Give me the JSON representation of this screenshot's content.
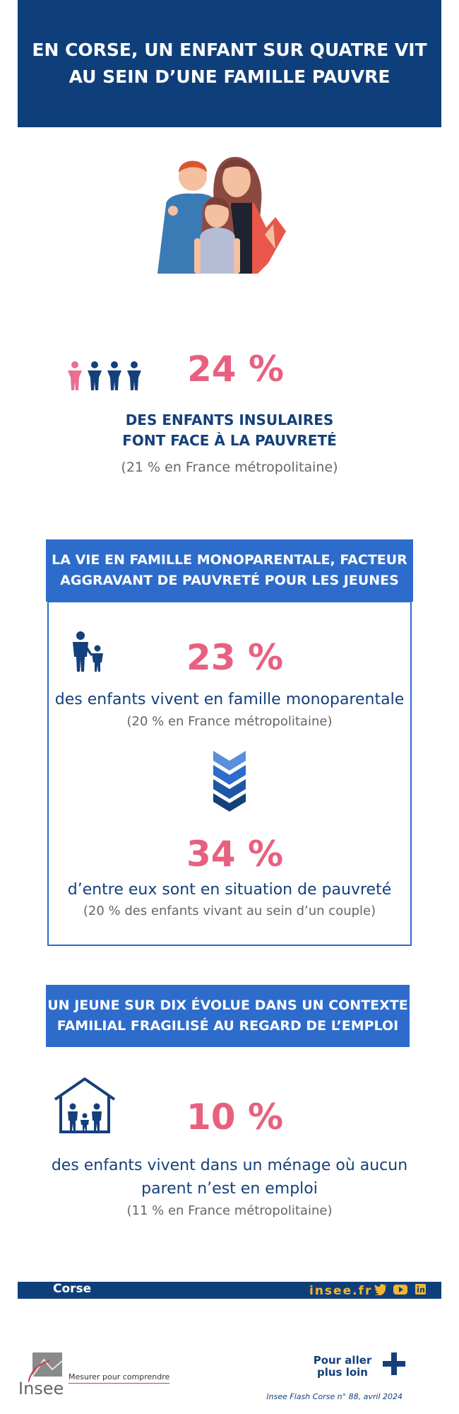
{
  "header": {
    "title": "EN CORSE, UN ENFANT SUR QUATRE VIT\nAU SEIN D’UNE FAMILLE PAUVRE"
  },
  "stat_poverty": {
    "value": "24 %",
    "label_line1": "DES ENFANTS INSULAIRES",
    "label_line2": "FONT FACE À LA PAUVRETÉ",
    "comparison": "(21 % en France métropolitaine)"
  },
  "section_single_parent": {
    "banner": "LA VIE EN FAMILLE MONOPARENTALE, FACTEUR\nAGGRAVANT DE PAUVRETÉ POUR LES JEUNES",
    "stat1": {
      "value": "23 %",
      "label": "des enfants vivent en famille monoparentale",
      "comparison": "(20 % en France métropolitaine)"
    },
    "stat2": {
      "value": "34 %",
      "label": "d’entre eux sont en situation de pauvreté",
      "comparison": "(20 % des enfants vivant au sein d’un couple)"
    }
  },
  "section_employment": {
    "banner": "UN JEUNE SUR DIX ÉVOLUE DANS UN CONTEXTE\nFAMILIAL FRAGILISÉ AU REGARD DE L’EMPLOI",
    "value": "10 %",
    "label_line1": "des enfants vivent dans un ménage où aucun",
    "label_line2": "parent n’est en emploi",
    "comparison": "(11 % en France métropolitaine)"
  },
  "footer": {
    "region": "Corse",
    "site": "insee.fr",
    "logo_text": "Insee",
    "tagline": "Mesurer pour comprendre",
    "more_line1": "Pour aller",
    "more_line2": "plus loin",
    "publication": "Insee Flash Corse n° 88, avril 2024"
  },
  "colors": {
    "navy": "#0f3f7a",
    "banner_blue": "#2d6ccb",
    "accent_pink": "#e8607f",
    "footer_yellow": "#f2b731"
  }
}
